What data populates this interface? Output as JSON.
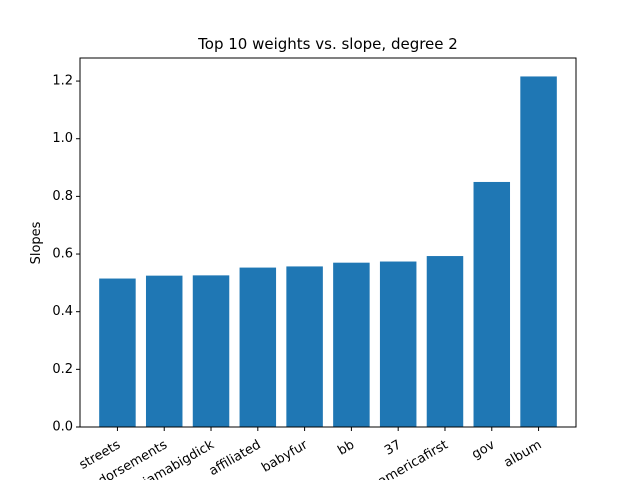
{
  "chart_data": {
    "type": "bar",
    "title": "Top 10 weights vs. slope, degree 2",
    "xlabel": "",
    "ylabel": "Slopes",
    "categories": [
      "streets",
      "endorsements",
      "iamabigdick",
      "affiliated",
      "babyfur",
      "bb",
      "37",
      "americafirst",
      "gov",
      "album"
    ],
    "values": [
      0.515,
      0.525,
      0.526,
      0.553,
      0.557,
      0.57,
      0.574,
      0.593,
      0.85,
      1.216
    ],
    "ylim": [
      0,
      1.28
    ],
    "yticks": [
      0.0,
      0.2,
      0.4,
      0.6,
      0.8,
      1.0,
      1.2
    ],
    "ytick_labels": [
      "0.0",
      "0.2",
      "0.4",
      "0.6",
      "0.8",
      "1.0",
      "1.2"
    ],
    "bar_color": "#1f77b4",
    "grid": false
  }
}
